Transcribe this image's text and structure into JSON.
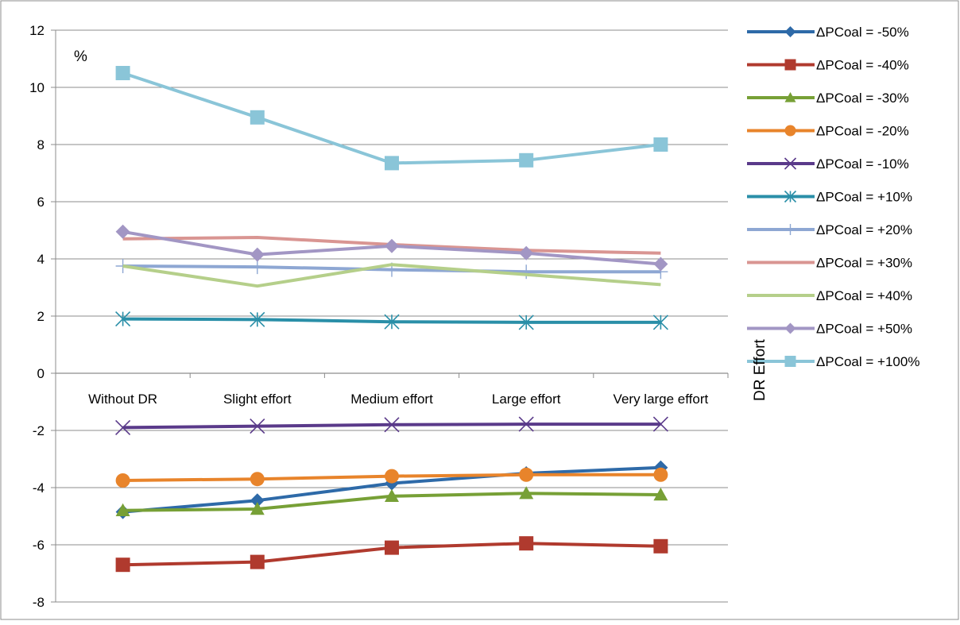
{
  "chart_data": {
    "type": "line",
    "title": "",
    "ylabel": "%",
    "xlabel": "DR Effort",
    "ylim": [
      -8,
      12
    ],
    "yticks": [
      12,
      10,
      8,
      6,
      4,
      2,
      0,
      -2,
      -4,
      -6,
      -8
    ],
    "grid": "horizontal",
    "legend_position": "right",
    "categories": [
      "Without DR",
      "Slight effort",
      "Medium effort",
      "Large effort",
      "Very large effort"
    ],
    "series": [
      {
        "name": "ΔPCoal = -50%",
        "color": "#2e6aa8",
        "marker": "diamond",
        "values": [
          -4.85,
          -4.45,
          -3.85,
          -3.5,
          -3.3
        ]
      },
      {
        "name": "ΔPCoal = -40%",
        "color": "#b03a2e",
        "marker": "square",
        "values": [
          -6.7,
          -6.6,
          -6.1,
          -5.95,
          -6.05
        ]
      },
      {
        "name": "ΔPCoal = -30%",
        "color": "#77a036",
        "marker": "triangle",
        "values": [
          -4.8,
          -4.75,
          -4.3,
          -4.2,
          -4.25
        ]
      },
      {
        "name": "ΔPCoal = -20%",
        "color": "#e8842b",
        "marker": "circle",
        "values": [
          -3.75,
          -3.7,
          -3.6,
          -3.55,
          -3.55
        ]
      },
      {
        "name": "ΔPCoal = -10%",
        "color": "#5a3a8a",
        "marker": "x",
        "values": [
          -1.9,
          -1.85,
          -1.8,
          -1.78,
          -1.78
        ]
      },
      {
        "name": "ΔPCoal = +10%",
        "color": "#2a8fa8",
        "marker": "star",
        "values": [
          1.9,
          1.88,
          1.8,
          1.78,
          1.78
        ]
      },
      {
        "name": "ΔPCoal = +20%",
        "color": "#8ea7d3",
        "marker": "plus",
        "values": [
          3.75,
          3.72,
          3.62,
          3.55,
          3.55
        ]
      },
      {
        "name": "ΔPCoal = +30%",
        "color": "#d99592",
        "marker": "none",
        "values": [
          4.7,
          4.75,
          4.5,
          4.3,
          4.2
        ]
      },
      {
        "name": "ΔPCoal = +40%",
        "color": "#b5cf8a",
        "marker": "none",
        "values": [
          3.75,
          3.05,
          3.8,
          3.45,
          3.1
        ]
      },
      {
        "name": "ΔPCoal = +50%",
        "color": "#a296c4",
        "marker": "diamond",
        "values": [
          4.95,
          4.15,
          4.45,
          4.2,
          3.82
        ]
      },
      {
        "name": "ΔPCoal = +100%",
        "color": "#8ac5d8",
        "marker": "square",
        "values": [
          10.5,
          8.95,
          7.35,
          7.45,
          8.0
        ]
      }
    ]
  }
}
